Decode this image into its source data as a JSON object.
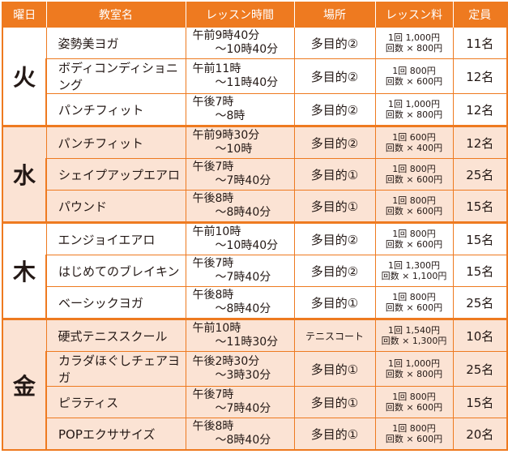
{
  "headers": [
    "曜日",
    "教室名",
    "レッスン時間",
    "場所",
    "レッスン料",
    "定員"
  ],
  "groups": [
    {
      "day": "火",
      "rows": [
        {
          "name": "姿勢美ヨガ",
          "time1": "午前9時40分",
          "time2": "～10時40分",
          "place": "多目的②",
          "fee1": "1回 1,000円",
          "fee2": "回数 × 800円",
          "cap": "11名"
        },
        {
          "name": "ボディコンディショニング",
          "time1": "午前11時",
          "time2": "～11時40分",
          "place": "多目的②",
          "fee1": "1回 800円",
          "fee2": "回数 × 600円",
          "cap": "12名"
        },
        {
          "name": "パンチフィット",
          "time1": "午後7時",
          "time2": "～8時",
          "place": "多目的②",
          "fee1": "1回 1,000円",
          "fee2": "回数 × 800円",
          "cap": "12名"
        }
      ]
    },
    {
      "day": "水",
      "rows": [
        {
          "name": "パンチフィット",
          "time1": "午前9時30分",
          "time2": "～10時",
          "place": "多目的②",
          "fee1": "1回 600円",
          "fee2": "回数 × 400円",
          "cap": "12名"
        },
        {
          "name": "シェイプアップエアロ",
          "time1": "午後7時",
          "time2": "～7時40分",
          "place": "多目的①",
          "fee1": "1回 800円",
          "fee2": "回数 × 600円",
          "cap": "25名"
        },
        {
          "name": "パウンド",
          "time1": "午後8時",
          "time2": "～8時40分",
          "place": "多目的①",
          "fee1": "1回 800円",
          "fee2": "回数 × 600円",
          "cap": "15名"
        }
      ]
    },
    {
      "day": "木",
      "rows": [
        {
          "name": "エンジョイエアロ",
          "time1": "午前10時",
          "time2": "～10時40分",
          "place": "多目的②",
          "fee1": "1回 800円",
          "fee2": "回数 × 600円",
          "cap": "15名"
        },
        {
          "name": "はじめてのブレイキン",
          "time1": "午後7時",
          "time2": "～7時40分",
          "place": "多目的②",
          "fee1": "1回 1,300円",
          "fee2": "回数 × 1,100円",
          "cap": "15名"
        },
        {
          "name": "ベーシックヨガ",
          "time1": "午後8時",
          "time2": "～8時40分",
          "place": "多目的①",
          "fee1": "1回 800円",
          "fee2": "回数 × 600円",
          "cap": "25名"
        }
      ]
    },
    {
      "day": "金",
      "rows": [
        {
          "name": "硬式テニススクール",
          "time1": "午前10時",
          "time2": "～11時30分",
          "place": "テニスコート",
          "fee1": "1回 1,540円",
          "fee2": "回数 × 1,300円",
          "cap": "10名"
        },
        {
          "name": "カラダほぐしチェアヨガ",
          "time1": "午後2時30分",
          "time2": "～3時30分",
          "place": "多目的①",
          "fee1": "1回 1,000円",
          "fee2": "回数 × 800円",
          "cap": "25名"
        },
        {
          "name": "ピラティス",
          "time1": "午後7時",
          "time2": "～7時40分",
          "place": "多目的①",
          "fee1": "1回 800円",
          "fee2": "回数 × 600円",
          "cap": "15名"
        },
        {
          "name": "POPエクササイズ",
          "time1": "午後8時",
          "time2": "～8時40分",
          "place": "多目的①",
          "fee1": "1回 800円",
          "fee2": "回数 × 600円",
          "cap": "20名"
        }
      ]
    }
  ]
}
